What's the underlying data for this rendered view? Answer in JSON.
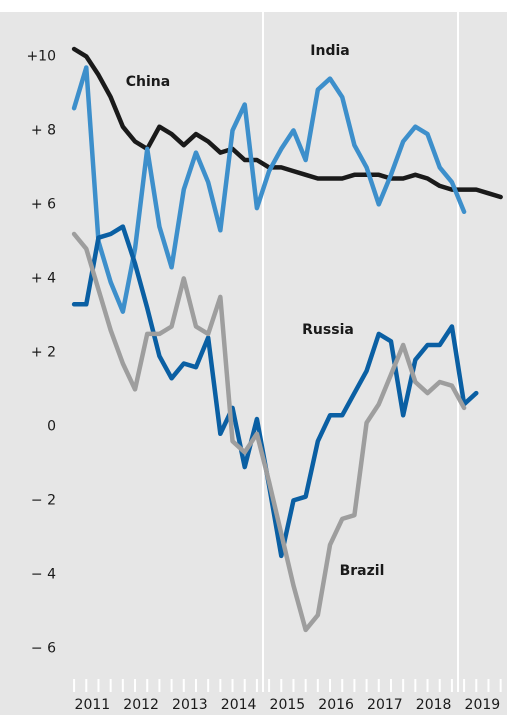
{
  "chart_data": {
    "type": "line",
    "x": [
      2011.125,
      2011.375,
      2011.625,
      2011.875,
      2012.125,
      2012.375,
      2012.625,
      2012.875,
      2013.125,
      2013.375,
      2013.625,
      2013.875,
      2014.125,
      2014.375,
      2014.625,
      2014.875,
      2015.125,
      2015.375,
      2015.625,
      2015.875,
      2016.125,
      2016.375,
      2016.625,
      2016.875,
      2017.125,
      2017.375,
      2017.625,
      2017.875,
      2018.125,
      2018.375,
      2018.625,
      2018.875,
      2019.125,
      2019.375,
      2019.625,
      2019.875
    ],
    "series": [
      {
        "name": "China",
        "color": "#1a1a1a",
        "values": [
          10.2,
          10.0,
          9.5,
          8.9,
          8.1,
          7.7,
          7.5,
          8.1,
          7.9,
          7.6,
          7.9,
          7.7,
          7.4,
          7.5,
          7.2,
          7.2,
          7.0,
          7.0,
          6.9,
          6.8,
          6.7,
          6.7,
          6.7,
          6.8,
          6.8,
          6.8,
          6.7,
          6.7,
          6.8,
          6.7,
          6.5,
          6.4,
          6.4,
          6.4,
          6.3,
          6.2
        ]
      },
      {
        "name": "India",
        "color": "#3d8fcb",
        "values": [
          8.6,
          9.7,
          5.0,
          3.9,
          3.1,
          4.8,
          7.5,
          5.4,
          4.3,
          6.4,
          7.4,
          6.6,
          5.3,
          8.0,
          8.7,
          5.9,
          6.9,
          7.5,
          8.0,
          7.2,
          9.1,
          9.4,
          8.9,
          7.6,
          7.0,
          6.0,
          6.8,
          7.7,
          8.1,
          7.9,
          7.0,
          6.6,
          5.8,
          null,
          null,
          null
        ]
      },
      {
        "name": "Russia",
        "color": "#0a5fa3",
        "values": [
          3.3,
          3.3,
          5.1,
          5.2,
          5.4,
          4.4,
          3.2,
          1.9,
          1.3,
          1.7,
          1.6,
          2.4,
          -0.2,
          0.5,
          -1.1,
          0.2,
          -1.6,
          -3.5,
          -2.0,
          -1.9,
          -0.4,
          0.3,
          0.3,
          0.9,
          1.5,
          2.5,
          2.3,
          0.3,
          1.8,
          2.2,
          2.2,
          2.7,
          0.6,
          0.9,
          null,
          null
        ]
      },
      {
        "name": "Brazil",
        "color": "#9e9e9e",
        "values": [
          5.2,
          4.8,
          3.7,
          2.6,
          1.7,
          1.0,
          2.5,
          2.5,
          2.7,
          4.0,
          2.7,
          2.5,
          3.5,
          -0.4,
          -0.7,
          -0.2,
          -1.5,
          -2.9,
          -4.3,
          -5.5,
          -5.1,
          -3.2,
          -2.5,
          -2.4,
          0.1,
          0.6,
          1.4,
          2.2,
          1.2,
          0.9,
          1.2,
          1.1,
          0.5,
          null,
          null,
          null
        ]
      }
    ],
    "xlim": [
      2011,
      2020
    ],
    "xticks": [
      2011,
      2012,
      2013,
      2014,
      2015,
      2016,
      2017,
      2018,
      2019
    ],
    "vlines": [
      2015,
      2019
    ],
    "ylim": [
      -7.8,
      11.2
    ],
    "yticks": [
      {
        "value": 10,
        "label": "+10"
      },
      {
        "value": 8,
        "label": "+ 8"
      },
      {
        "value": 6,
        "label": "+ 6"
      },
      {
        "value": 4,
        "label": "+ 4"
      },
      {
        "value": 2,
        "label": "+ 2"
      },
      0,
      {
        "value": -2,
        "label": "− 2"
      },
      {
        "value": -4,
        "label": "− 4"
      },
      {
        "value": -6,
        "label": "− 6"
      }
    ]
  }
}
